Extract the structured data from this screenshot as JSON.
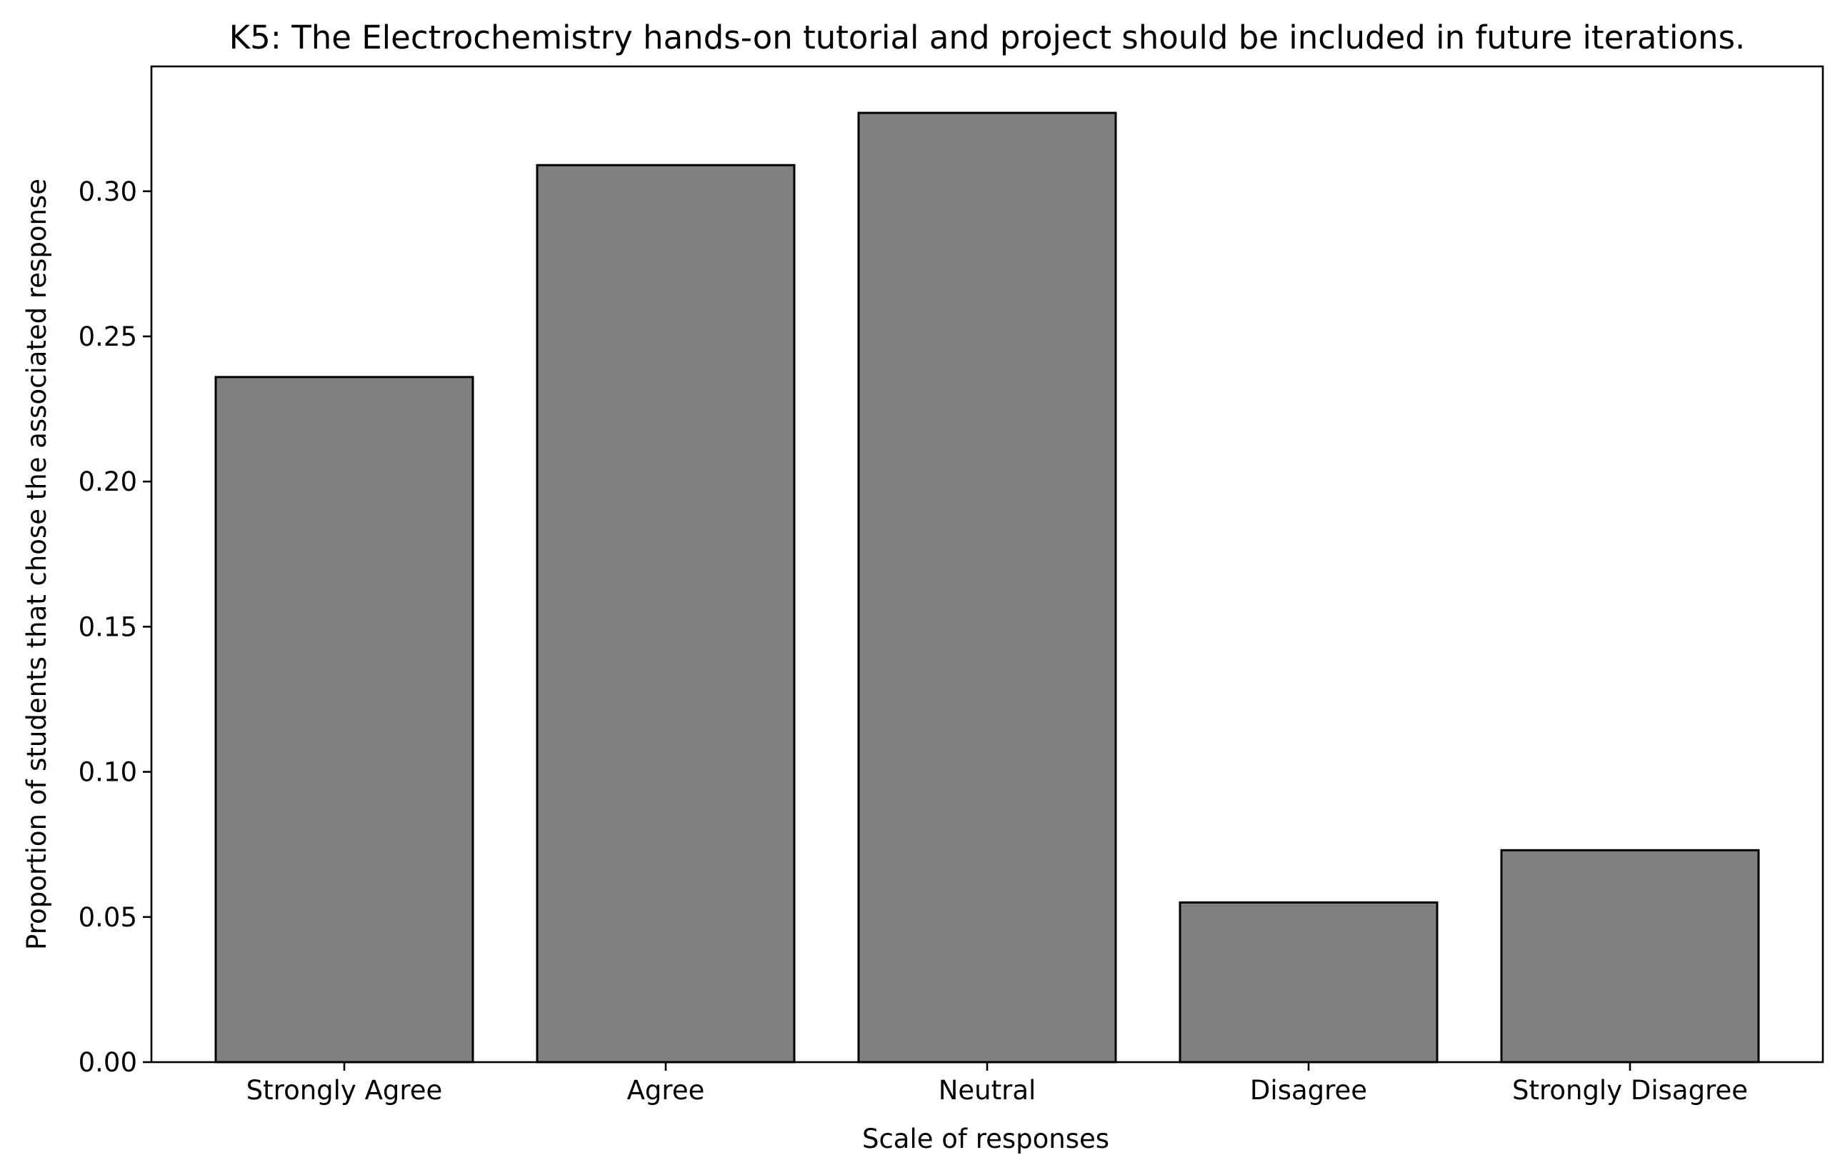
{
  "chart_data": {
    "type": "bar",
    "title": "K5: The Electrochemistry hands-on tutorial and project should be included in future iterations.",
    "xlabel": "Scale of responses",
    "ylabel": "Proportion of students that chose the associated response",
    "categories": [
      "Strongly Agree",
      "Agree",
      "Neutral",
      "Disagree",
      "Strongly Disagree"
    ],
    "values": [
      0.236,
      0.309,
      0.327,
      0.055,
      0.073
    ],
    "ylim": [
      0,
      0.343
    ],
    "yticks": [
      "0.00",
      "0.05",
      "0.10",
      "0.15",
      "0.20",
      "0.25",
      "0.30"
    ],
    "grid": false,
    "legend": "none",
    "colors": {
      "bar_fill": "#808080",
      "bar_edge": "#000000",
      "axis": "#000000",
      "text": "#000000"
    }
  }
}
